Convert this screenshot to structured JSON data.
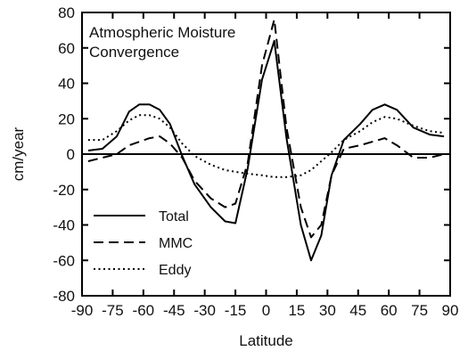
{
  "chart_data": {
    "type": "line",
    "title_lines": [
      "Atmospheric Moisture",
      "Convergence"
    ],
    "xlabel": "Latitude",
    "ylabel": "cm/year",
    "xlim": [
      -90,
      90
    ],
    "ylim": [
      -80,
      80
    ],
    "x_ticks": [
      -90,
      -75,
      -60,
      -45,
      -30,
      -15,
      0,
      15,
      30,
      45,
      60,
      75,
      90
    ],
    "y_ticks": [
      -80,
      -60,
      -40,
      -20,
      0,
      20,
      40,
      60,
      80
    ],
    "grid": false,
    "zero_line": true,
    "legend_position": "bottom-left",
    "series": [
      {
        "name": "Total",
        "style": "solid",
        "x": [
          -87,
          -80,
          -73,
          -67,
          -62,
          -57,
          -52,
          -47,
          -41,
          -35,
          -27,
          -20,
          -15,
          -9,
          -2,
          4,
          10,
          17,
          22,
          27,
          32,
          38,
          46,
          52,
          58,
          64,
          72,
          80,
          87
        ],
        "y": [
          2,
          3,
          10,
          24,
          28,
          28,
          25,
          17,
          -1,
          -17,
          -30,
          -38,
          -39,
          -8,
          42,
          64,
          9,
          -40,
          -60,
          -46,
          -12,
          8,
          17,
          25,
          28,
          25,
          15,
          11,
          10
        ]
      },
      {
        "name": "MMC",
        "style": "dashed",
        "x": [
          -87,
          -80,
          -73,
          -67,
          -62,
          -57,
          -52,
          -47,
          -41,
          -35,
          -27,
          -20,
          -15,
          -9,
          -2,
          4,
          10,
          17,
          22,
          27,
          32,
          38,
          46,
          52,
          58,
          64,
          72,
          80,
          87
        ],
        "y": [
          -4,
          -2,
          0,
          5,
          7,
          9,
          10,
          6,
          -2,
          -15,
          -25,
          -30,
          -28,
          -5,
          50,
          76,
          15,
          -30,
          -47,
          -40,
          -12,
          3,
          5,
          7,
          9,
          5,
          -2,
          -2,
          0
        ]
      },
      {
        "name": "Eddy",
        "style": "dotted",
        "x": [
          -87,
          -80,
          -73,
          -67,
          -62,
          -57,
          -52,
          -47,
          -41,
          -35,
          -27,
          -20,
          -15,
          -9,
          -2,
          4,
          10,
          17,
          22,
          27,
          32,
          38,
          46,
          52,
          58,
          64,
          72,
          80,
          87
        ],
        "y": [
          8,
          8,
          13,
          19,
          22,
          22,
          20,
          15,
          6,
          -1,
          -6,
          -9,
          -10,
          -11,
          -12,
          -13,
          -13,
          -12,
          -9,
          -4,
          1,
          8,
          13,
          18,
          21,
          20,
          16,
          13,
          12
        ]
      }
    ]
  }
}
